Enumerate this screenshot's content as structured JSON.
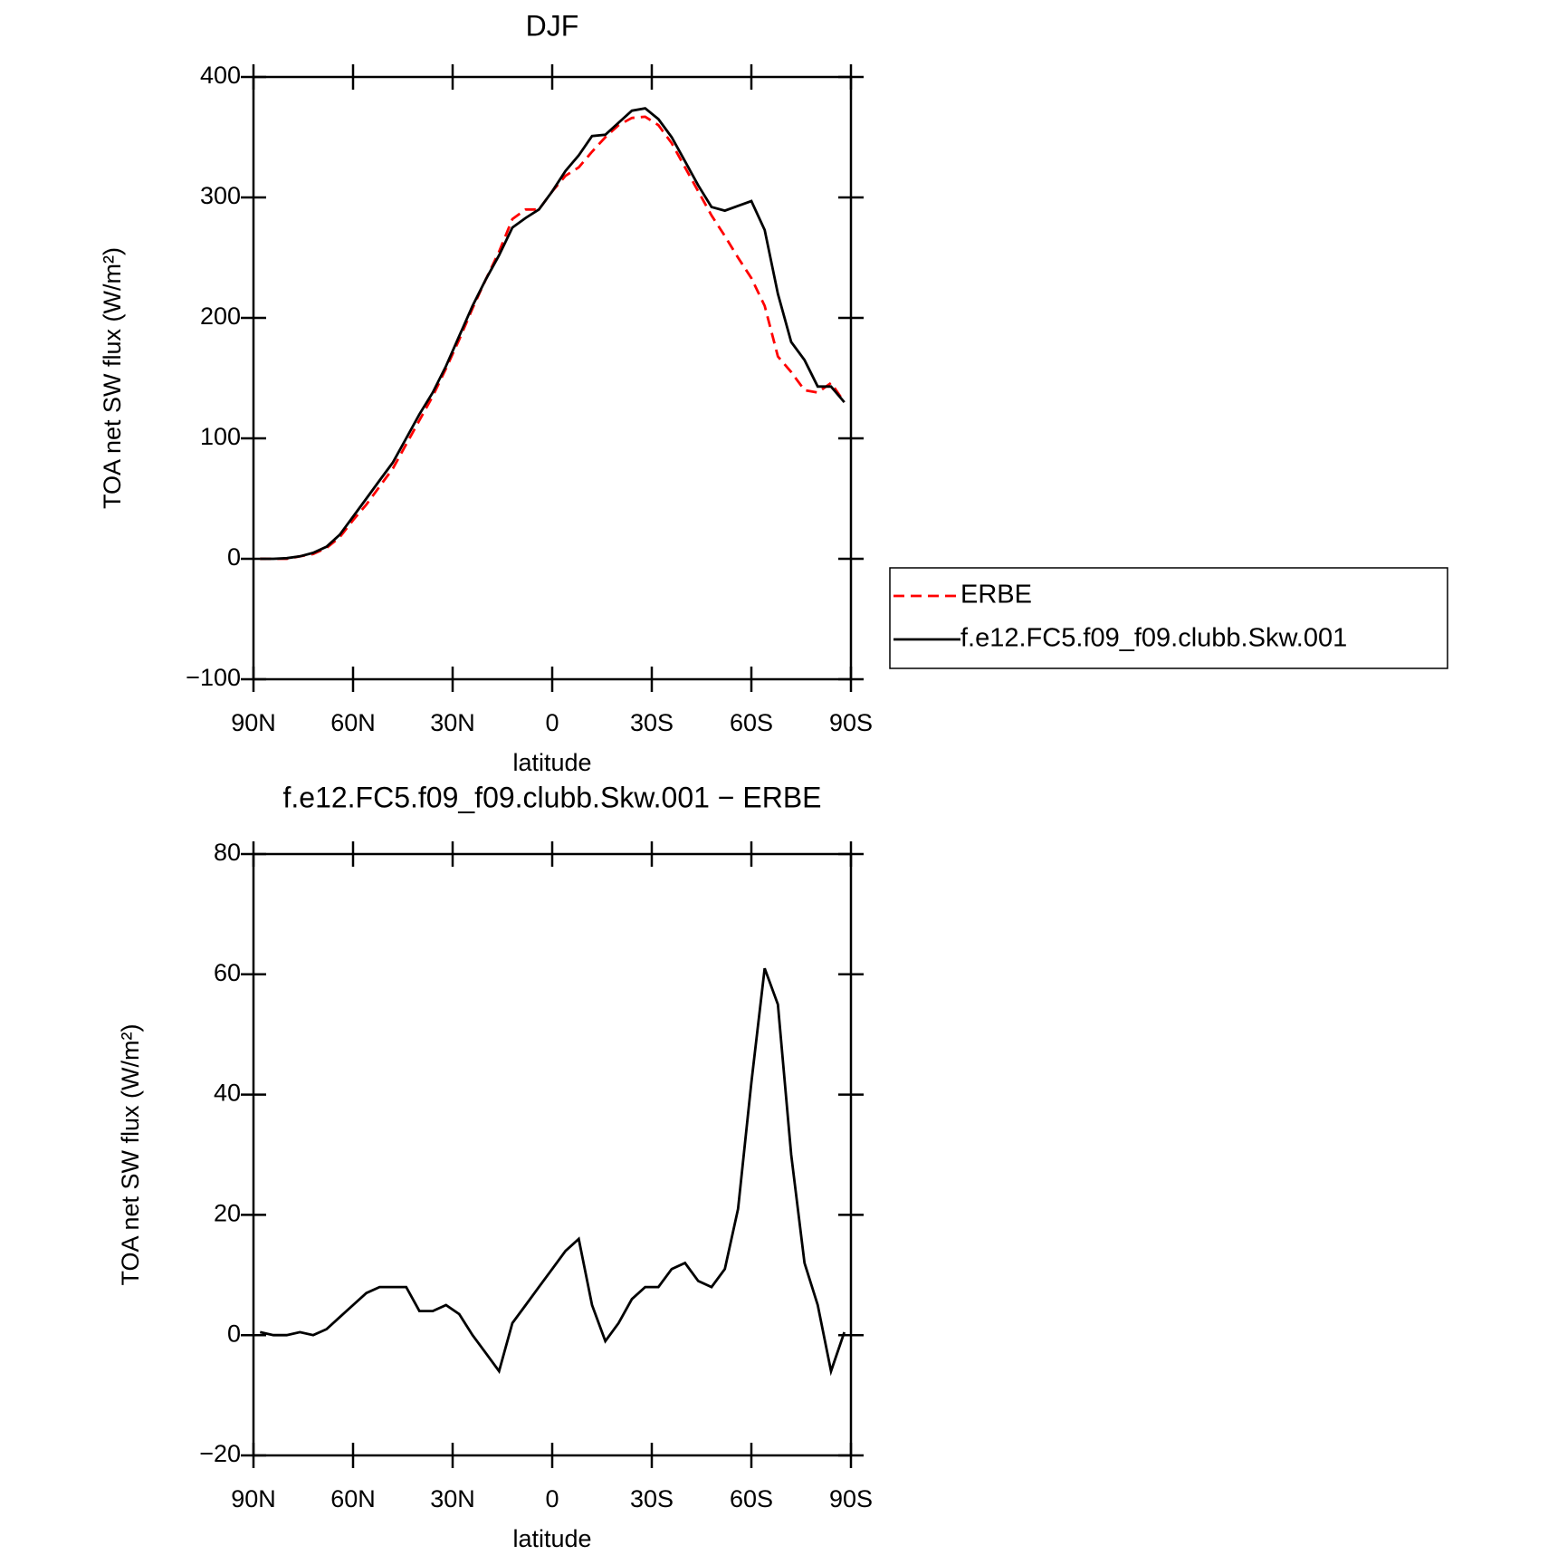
{
  "chart_data": [
    {
      "type": "line",
      "title": "DJF",
      "xlabel": "latitude",
      "ylabel": "TOA net SW flux (W/m²)",
      "x": [
        88,
        84,
        80,
        76,
        72,
        68,
        64,
        60,
        56,
        52,
        48,
        44,
        40,
        36,
        32,
        28,
        24,
        20,
        16,
        12,
        8,
        4,
        0,
        -4,
        -8,
        -12,
        -16,
        -20,
        -24,
        -28,
        -32,
        -36,
        -40,
        -44,
        -48,
        -52,
        -56,
        -60,
        -64,
        -68,
        -72,
        -76,
        -80,
        -84,
        -88
      ],
      "series": [
        {
          "name": "ERBE",
          "color": "#ff0000",
          "dash": true,
          "values": [
            0,
            0,
            0,
            2,
            4,
            9,
            18,
            32,
            45,
            60,
            75,
            95,
            115,
            135,
            158,
            182,
            208,
            232,
            255,
            282,
            290,
            290,
            305,
            318,
            325,
            338,
            350,
            360,
            366,
            367,
            360,
            345,
            325,
            305,
            285,
            268,
            250,
            233,
            210,
            168,
            155,
            140,
            138,
            146,
            130
          ]
        },
        {
          "name": "f.e12.FC5.f09_f09.clubb.Skw.001",
          "color": "#000000",
          "dash": false,
          "values": [
            0,
            0,
            0.5,
            2,
            5,
            10,
            20,
            35,
            50,
            65,
            80,
            100,
            120,
            138,
            160,
            185,
            210,
            232,
            252,
            275,
            283,
            290,
            305,
            322,
            335,
            351,
            352,
            362,
            372,
            374,
            365,
            350,
            330,
            310,
            292,
            289,
            293,
            297,
            273,
            220,
            180,
            165,
            143,
            143,
            130
          ]
        }
      ],
      "xlim": [
        90,
        -90
      ],
      "xticks": [
        {
          "value": 90,
          "label": "90N"
        },
        {
          "value": 60,
          "label": "60N"
        },
        {
          "value": 30,
          "label": "30N"
        },
        0,
        {
          "value": -30,
          "label": "30S"
        },
        {
          "value": -60,
          "label": "60S"
        },
        {
          "value": -90,
          "label": "90S"
        }
      ],
      "ylim": [
        -100,
        400
      ],
      "yticks": [
        {
          "value": -100,
          "label": "−100"
        },
        0,
        100,
        200,
        300,
        400
      ],
      "legend": "right"
    },
    {
      "type": "line",
      "title": "f.e12.FC5.f09_f09.clubb.Skw.001 − ERBE",
      "xlabel": "latitude",
      "ylabel": "TOA net SW flux (W/m²)",
      "x": [
        88,
        84,
        80,
        76,
        72,
        68,
        64,
        60,
        56,
        52,
        48,
        44,
        40,
        36,
        32,
        28,
        24,
        20,
        16,
        12,
        8,
        4,
        0,
        -4,
        -8,
        -12,
        -16,
        -20,
        -24,
        -28,
        -32,
        -36,
        -40,
        -44,
        -48,
        -52,
        -56,
        -60,
        -64,
        -68,
        -72,
        -76,
        -80,
        -84,
        -88
      ],
      "series": [
        {
          "color": "#000000",
          "dash": false,
          "values": [
            0.5,
            0,
            0,
            0.5,
            0,
            1,
            3,
            5,
            7,
            8,
            8,
            8,
            4,
            4,
            5,
            3.5,
            0,
            -3,
            -6,
            2,
            5,
            8,
            11,
            14,
            16,
            5,
            -1,
            2,
            6,
            8,
            8,
            11,
            12,
            9,
            8,
            11,
            21,
            42,
            61,
            55,
            30,
            12,
            5,
            -6,
            0.5
          ]
        }
      ],
      "xlim": [
        90,
        -90
      ],
      "xticks": [
        {
          "value": 90,
          "label": "90N"
        },
        {
          "value": 60,
          "label": "60N"
        },
        {
          "value": 30,
          "label": "30N"
        },
        0,
        {
          "value": -30,
          "label": "30S"
        },
        {
          "value": -60,
          "label": "60S"
        },
        {
          "value": -90,
          "label": "90S"
        }
      ],
      "ylim": [
        -20,
        80
      ],
      "yticks": [
        {
          "value": -20,
          "label": "−20"
        },
        0,
        20,
        40,
        60,
        80
      ]
    }
  ]
}
